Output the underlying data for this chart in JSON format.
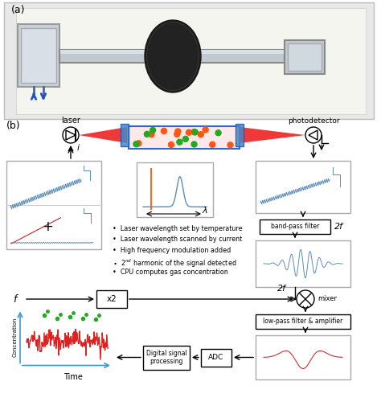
{
  "title_a": "(a)",
  "title_b": "(b)",
  "bg_color": "#ffffff",
  "laser_label": "laser",
  "photodetector_label": "photodetector",
  "i_label": "i",
  "lambda_label": "λ",
  "bullet_points": [
    "Laser wavelength set by temperature",
    "Laser wavelength scanned by current",
    "High frequency modulation added",
    "2nd harmonic of the signal detected",
    "CPU computes gas concentration"
  ],
  "box_labels": [
    "band-pass filter",
    "x2",
    "Digital signal\nprocessing",
    "ADC",
    "low-pass filter & amplifier"
  ],
  "signal_labels_2f": "2f",
  "mixer_label": "mixer",
  "f_label": "f",
  "time_label": "Time",
  "concentration_label": "Concentration",
  "blue_color": "#5B8DB8",
  "red_color": "#DD2222",
  "orange_color": "#E87020",
  "green_color": "#22AA22",
  "gray": "#888888",
  "light_gray": "#EEEEEE",
  "photo_bg": "#E8E8E8",
  "photo_border": "#BBBBBB"
}
